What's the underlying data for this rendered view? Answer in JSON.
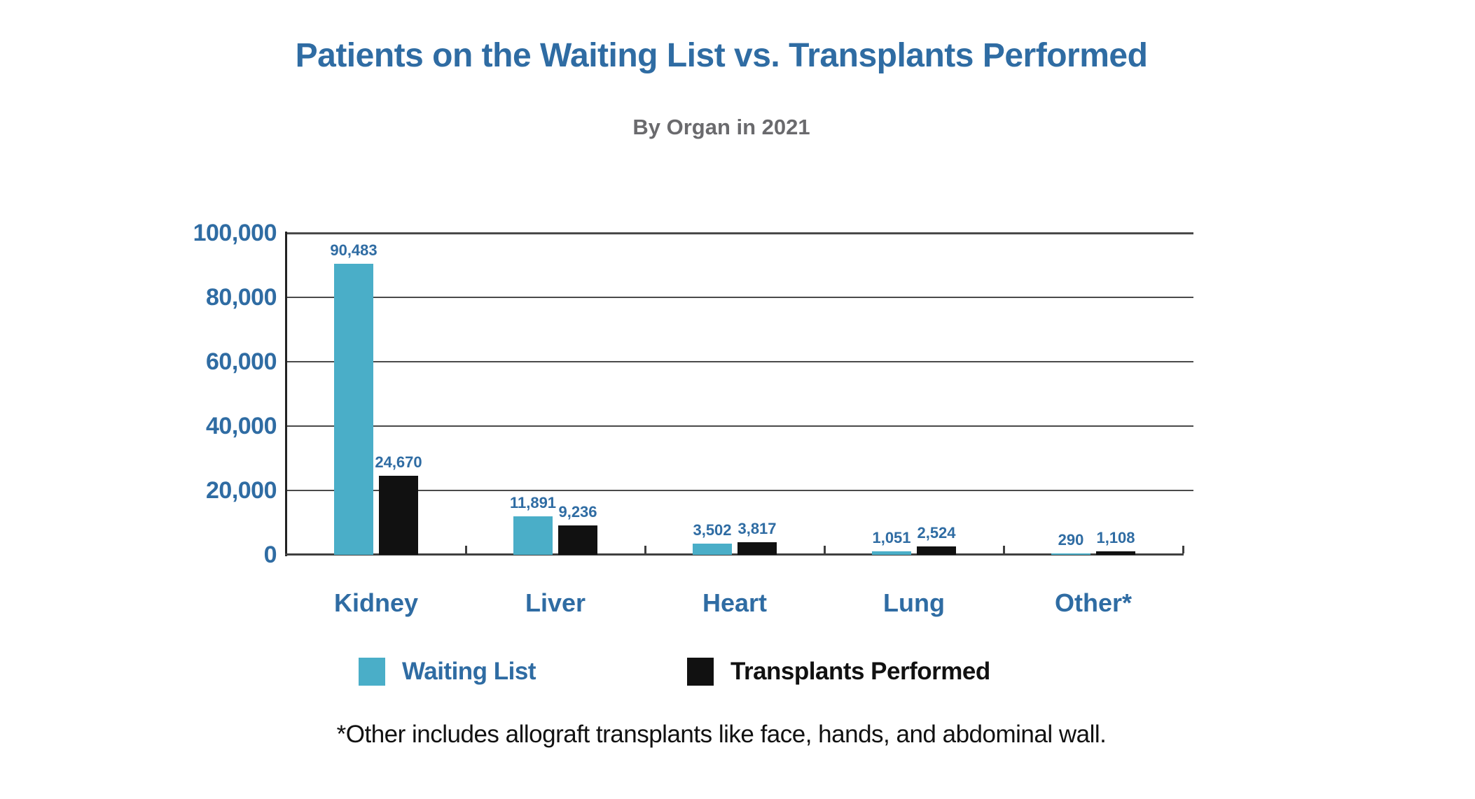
{
  "title": "Patients on the Waiting List vs. Transplants Performed",
  "subtitle": "By Organ in 2021",
  "footnote": "*Other includes allograft transplants like face, hands, and abdominal wall.",
  "colors": {
    "accent_blue": "#2F6CA3",
    "waiting_list_teal": "#4AAEC8",
    "transplants_black": "#111111",
    "subtitle_gray": "#6A6A6D",
    "gridline_gray": "#4a4a4a"
  },
  "legend": {
    "items": [
      {
        "label": "Waiting List",
        "color": "#4AAEC8"
      },
      {
        "label": "Transplants Performed",
        "color": "#111111"
      }
    ]
  },
  "y_axis": {
    "tick_labels": [
      "100,000",
      "80,000",
      "60,000",
      "40,000",
      "20,000",
      "0"
    ],
    "tick_values": [
      100000,
      80000,
      60000,
      40000,
      20000,
      0
    ]
  },
  "chart_data": {
    "type": "bar",
    "title": "Patients on the Waiting List vs. Transplants Performed",
    "subtitle": "By Organ in 2021",
    "categories": [
      "Kidney",
      "Liver",
      "Heart",
      "Lung",
      "Other*"
    ],
    "series": [
      {
        "name": "Waiting List",
        "color": "#4AAEC8",
        "values": [
          90483,
          11891,
          3502,
          1051,
          290
        ],
        "labels": [
          "90,483",
          "11,891",
          "3,502",
          "1,051",
          "290"
        ]
      },
      {
        "name": "Transplants Performed",
        "color": "#111111",
        "values": [
          24670,
          9236,
          3817,
          2524,
          1108
        ],
        "labels": [
          "24,670",
          "9,236",
          "3,817",
          "2,524",
          "1,108"
        ]
      }
    ],
    "xlabel": "",
    "ylabel": "",
    "ylim": [
      0,
      100000
    ],
    "grid": true,
    "legend_position": "bottom",
    "annotation": "*Other includes allograft transplants like face, hands, and abdominal wall."
  }
}
